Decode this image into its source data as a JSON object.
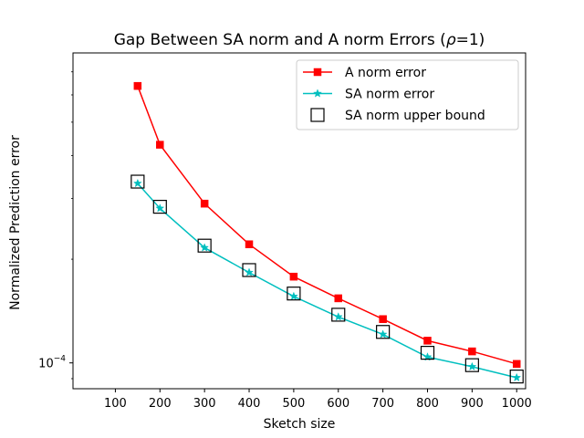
{
  "chart_data": {
    "type": "line",
    "title_prefix": "Gap Between SA norm and A norm Errors (",
    "title_symbol": "ρ",
    "title_suffix": "=1)",
    "xlabel": "Sketch size",
    "ylabel": "Normalized Prediction error",
    "yscale": "log",
    "xlim": [
      5,
      1020
    ],
    "ylim_log10": [
      -4.075,
      -3.1
    ],
    "x_ticks": [
      100,
      200,
      300,
      400,
      500,
      600,
      700,
      800,
      900,
      1000
    ],
    "y_ticks": [
      {
        "base": "10",
        "exp": "−4",
        "value": 0.0001
      }
    ],
    "grid": false,
    "legend_position": "top-right",
    "series": [
      {
        "name": "A norm error",
        "color": "#ff0000",
        "marker": "square",
        "x": [
          150,
          200,
          300,
          400,
          500,
          600,
          700,
          800,
          900,
          1000
        ],
        "y": [
          0.000637,
          0.00043,
          0.00029,
          0.000221,
          0.000178,
          0.000154,
          0.000134,
          0.000116,
          0.000108,
          9.93e-05
        ]
      },
      {
        "name": "SA norm error",
        "color": "#00bfbf",
        "marker": "star",
        "x": [
          150,
          200,
          300,
          400,
          500,
          600,
          700,
          800,
          900,
          1000
        ],
        "y": [
          0.000332,
          0.000281,
          0.000216,
          0.000183,
          0.000156,
          0.000136,
          0.000121,
          0.000104,
          9.75e-05,
          9.06e-05
        ]
      },
      {
        "name": "SA norm upper bound",
        "color": "#000000",
        "marker": "open-square",
        "x": [
          150,
          200,
          300,
          400,
          500,
          600,
          700,
          800,
          900,
          1000
        ],
        "y": [
          0.000336,
          0.000284,
          0.000219,
          0.000186,
          0.000159,
          0.000138,
          0.000123,
          0.000107,
          9.85e-05,
          9.13e-05
        ]
      }
    ]
  }
}
